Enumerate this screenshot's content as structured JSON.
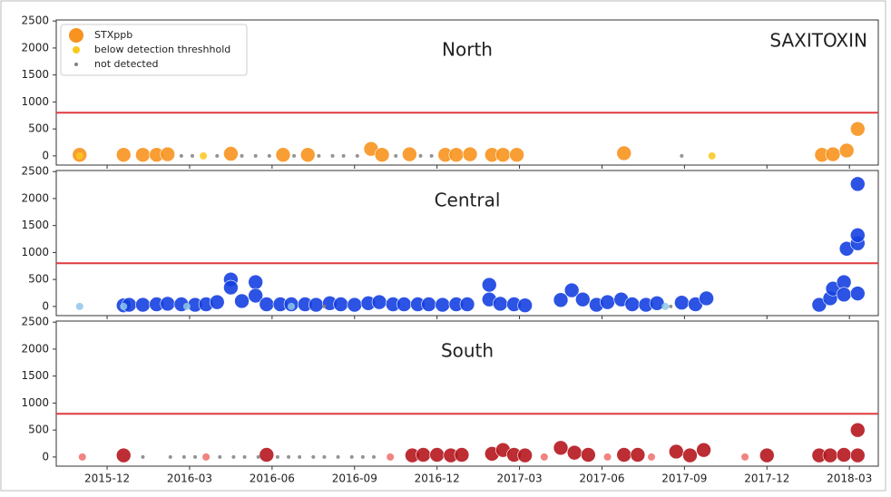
{
  "chart_data": [
    {
      "type": "scatter",
      "title": "North",
      "annotation": "SAXITOXIN",
      "legend": "upper left",
      "hline": 800,
      "hline_color": "#e0393e",
      "ylim": [
        -170,
        2520
      ],
      "yticks": [
        0,
        500,
        1000,
        1500,
        2000,
        2500
      ],
      "series": [
        {
          "name": "STXppb",
          "color": "#f7931e",
          "x": [
            -1.0,
            0.6,
            1.3,
            1.8,
            2.2,
            4.5,
            6.4,
            7.3,
            9.6,
            10.0,
            11.0,
            12.3,
            12.7,
            13.2,
            14.0,
            14.4,
            14.9,
            18.8,
            26.0,
            26.4,
            26.9,
            27.3
          ],
          "values": [
            20,
            20,
            20,
            20,
            30,
            40,
            20,
            20,
            130,
            20,
            30,
            20,
            20,
            30,
            20,
            20,
            20,
            50,
            20,
            30,
            100,
            500
          ]
        },
        {
          "name": "below detection threshhold",
          "color": "#f9c81e",
          "x": [
            -1.0,
            3.5,
            22.0
          ],
          "values": [
            0,
            0,
            0
          ]
        },
        {
          "name": "not detected",
          "color": "#808080",
          "x": [
            2.7,
            3.1,
            4.0,
            4.9,
            5.4,
            5.9,
            6.8,
            7.7,
            8.2,
            8.6,
            9.1,
            10.5,
            11.4,
            11.8,
            20.9
          ],
          "values": [
            0,
            0,
            0,
            0,
            0,
            0,
            0,
            0,
            0,
            0,
            0,
            0,
            0,
            0,
            0
          ]
        }
      ]
    },
    {
      "type": "scatter",
      "title": "Central",
      "hline": 800,
      "hline_color": "#e0393e",
      "ylim": [
        -170,
        2520
      ],
      "yticks": [
        0,
        500,
        1000,
        1500,
        2000,
        2500
      ],
      "series": [
        {
          "color": "#1540e0",
          "x": [
            0.6,
            0.8,
            1.3,
            1.8,
            2.2,
            2.7,
            3.2,
            3.6,
            4.0,
            4.5,
            4.5,
            4.9,
            5.4,
            5.4,
            5.8,
            6.3,
            6.7,
            7.2,
            7.6,
            8.1,
            8.5,
            9.0,
            9.5,
            9.9,
            10.4,
            10.8,
            11.3,
            11.7,
            12.2,
            12.7,
            13.1,
            13.9,
            13.9,
            14.3,
            14.8,
            15.2,
            16.5,
            16.9,
            17.3,
            17.8,
            18.2,
            18.7,
            19.1,
            19.6,
            20.0,
            20.9,
            21.4,
            21.8,
            25.9,
            26.3,
            26.4,
            26.8,
            26.8,
            26.9,
            27.3,
            27.3,
            27.3,
            27.3
          ],
          "values": [
            20,
            30,
            30,
            40,
            50,
            40,
            30,
            40,
            80,
            500,
            350,
            100,
            450,
            200,
            40,
            40,
            40,
            40,
            30,
            60,
            40,
            30,
            60,
            80,
            40,
            40,
            40,
            40,
            30,
            40,
            40,
            400,
            130,
            50,
            40,
            20,
            120,
            300,
            130,
            30,
            80,
            130,
            40,
            30,
            60,
            70,
            40,
            150,
            30,
            150,
            330,
            450,
            220,
            1070,
            1170,
            1320,
            2270,
            240
          ]
        },
        {
          "color": "#8ec5e8",
          "x": [
            -1.0,
            0.6,
            2.9,
            6.7,
            20.3
          ],
          "values": [
            0,
            0,
            0,
            0,
            0
          ]
        },
        {
          "color": "#808080",
          "x": [
            7.9,
            20.5
          ],
          "values": [
            0,
            0
          ]
        }
      ]
    },
    {
      "type": "scatter",
      "title": "South",
      "hline": 800,
      "hline_color": "#e0393e",
      "ylim": [
        -170,
        2520
      ],
      "yticks": [
        0,
        500,
        1000,
        1500,
        2000,
        2500
      ],
      "xlim": [
        -1.85,
        28.05
      ],
      "xticks": [
        {
          "value": 0,
          "label": "2015-12"
        },
        {
          "value": 3,
          "label": "2016-03"
        },
        {
          "value": 6,
          "label": "2016-06"
        },
        {
          "value": 9,
          "label": "2016-09"
        },
        {
          "value": 12,
          "label": "2016-12"
        },
        {
          "value": 15,
          "label": "2017-03"
        },
        {
          "value": 18,
          "label": "2017-06"
        },
        {
          "value": 21,
          "label": "2017-09"
        },
        {
          "value": 24,
          "label": "2017-12"
        },
        {
          "value": 27,
          "label": "2018-03"
        }
      ],
      "series": [
        {
          "color": "#b5161e",
          "x": [
            0.6,
            5.8,
            11.1,
            11.5,
            12.0,
            12.5,
            12.9,
            14.0,
            14.4,
            14.8,
            15.2,
            16.5,
            17.0,
            17.5,
            18.8,
            19.3,
            20.7,
            21.2,
            21.7,
            24.0,
            25.9,
            26.3,
            26.8,
            27.3,
            27.3
          ],
          "values": [
            30,
            40,
            30,
            40,
            40,
            30,
            40,
            60,
            130,
            40,
            30,
            170,
            80,
            40,
            40,
            40,
            100,
            30,
            130,
            30,
            30,
            30,
            40,
            500,
            30
          ]
        },
        {
          "color": "#ef6f6a",
          "x": [
            -0.9,
            3.6,
            10.3,
            15.9,
            18.2,
            19.8,
            23.2
          ],
          "values": [
            0,
            0,
            0,
            0,
            0,
            0,
            0
          ]
        },
        {
          "color": "#808080",
          "x": [
            1.3,
            2.3,
            2.8,
            3.2,
            4.1,
            4.6,
            5.0,
            5.5,
            6.2,
            6.6,
            7.0,
            7.5,
            7.9,
            8.4,
            8.9,
            9.3,
            9.7
          ],
          "values": [
            0,
            0,
            0,
            0,
            0,
            0,
            0,
            0,
            0,
            0,
            0,
            0,
            0,
            0,
            0,
            0,
            0
          ]
        }
      ]
    }
  ]
}
